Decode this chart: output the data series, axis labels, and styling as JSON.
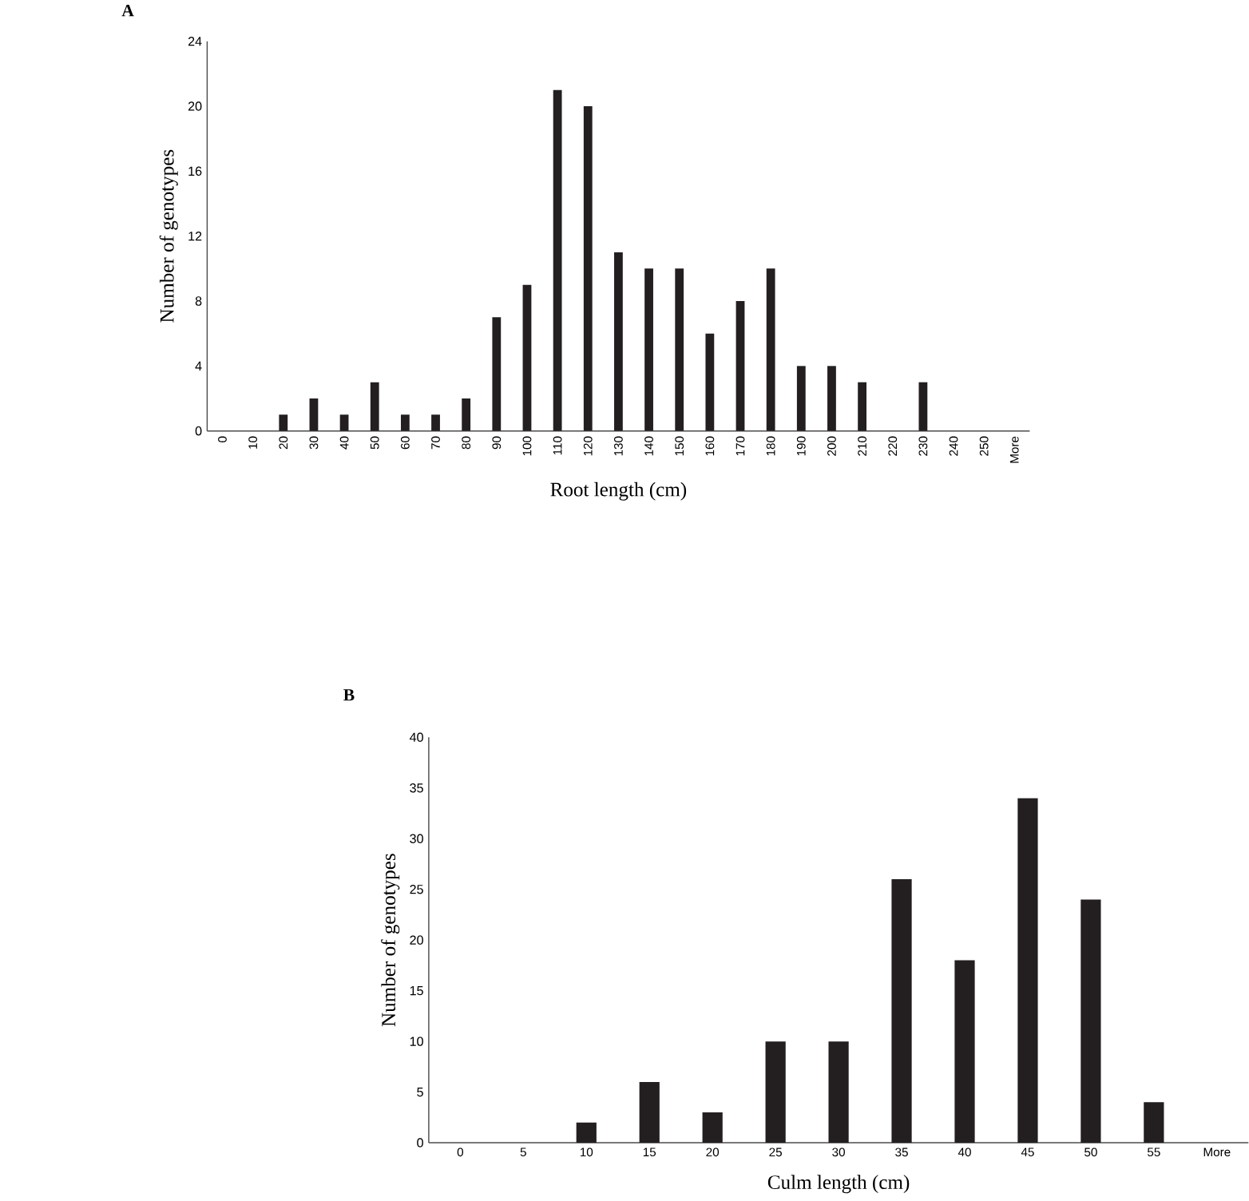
{
  "chart_data": [
    {
      "type": "bar",
      "title": "A",
      "xlabel": "Root length  (cm)",
      "ylabel": "Number of genotypes",
      "categories": [
        "0",
        "10",
        "20",
        "30",
        "40",
        "50",
        "60",
        "70",
        "80",
        "90",
        "100",
        "110",
        "120",
        "130",
        "140",
        "150",
        "160",
        "170",
        "180",
        "190",
        "200",
        "210",
        "220",
        "230",
        "240",
        "250",
        "More"
      ],
      "values": [
        0,
        0,
        1,
        2,
        1,
        3,
        1,
        1,
        2,
        7,
        9,
        21,
        20,
        11,
        10,
        10,
        6,
        8,
        10,
        4,
        4,
        3,
        0,
        3,
        0,
        0,
        0
      ],
      "color": "#231f20",
      "ylim": [
        0,
        24
      ],
      "yticks": [
        0,
        4,
        8,
        12,
        16,
        20,
        24
      ]
    },
    {
      "type": "bar",
      "title": "B",
      "xlabel": "Culm  length  (cm)",
      "ylabel": "Number of genotypes",
      "categories": [
        "0",
        "5",
        "10",
        "15",
        "20",
        "25",
        "30",
        "35",
        "40",
        "45",
        "50",
        "55",
        "More"
      ],
      "values": [
        0,
        0,
        2,
        6,
        3,
        10,
        10,
        26,
        18,
        34,
        24,
        4,
        0
      ],
      "color": "#231f20",
      "ylim": [
        0,
        40
      ],
      "yticks": [
        0,
        5,
        10,
        15,
        20,
        25,
        30,
        35,
        40
      ]
    }
  ]
}
